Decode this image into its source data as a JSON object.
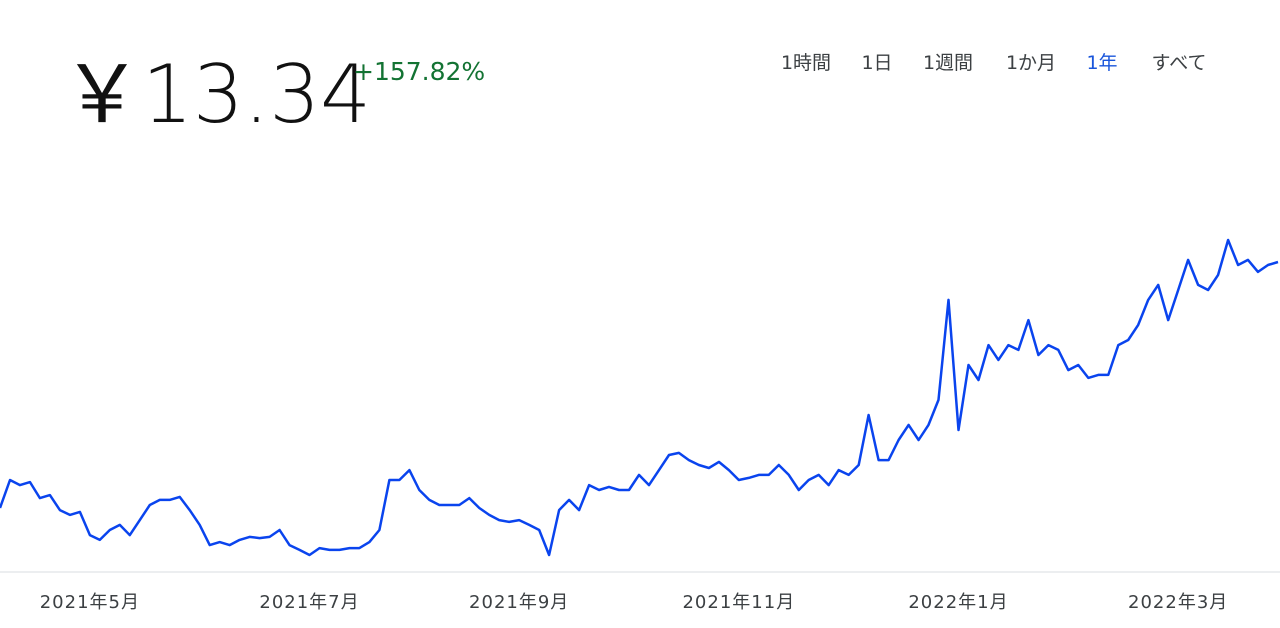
{
  "chart_data": {
    "type": "line",
    "price": "￥13.34",
    "change": "+157.82%",
    "ranges": [
      "1時間",
      "1日",
      "1週間",
      "1か月",
      "1年",
      "すべて"
    ],
    "active_range": 4,
    "color": "#0a44ee",
    "values": [
      5.17,
      6.1,
      5.93,
      6.03,
      5.5,
      5.6,
      5.1,
      4.94,
      5.04,
      4.27,
      4.11,
      4.44,
      4.61,
      4.27,
      4.77,
      5.27,
      5.44,
      5.44,
      5.54,
      5.1,
      4.61,
      3.94,
      4.04,
      3.94,
      4.11,
      4.21,
      4.17,
      4.21,
      4.44,
      3.94,
      3.78,
      3.61,
      3.84,
      3.78,
      3.78,
      3.84,
      3.84,
      4.04,
      4.44,
      6.1,
      6.1,
      6.43,
      5.77,
      5.44,
      5.27,
      5.27,
      5.27,
      5.5,
      5.17,
      4.94,
      4.77,
      4.71,
      4.77,
      4.61,
      4.44,
      3.61,
      5.1,
      5.44,
      5.1,
      5.93,
      5.77,
      5.87,
      5.77,
      5.77,
      6.27,
      5.93,
      6.43,
      6.93,
      7.0,
      6.76,
      6.6,
      6.5,
      6.7,
      6.43,
      6.1,
      6.17,
      6.27,
      6.27,
      6.6,
      6.27,
      5.77,
      6.1,
      6.27,
      5.93,
      6.43,
      6.27,
      6.6,
      8.26,
      6.76,
      6.76,
      7.43,
      7.93,
      7.43,
      7.93,
      8.76,
      12.08,
      7.76,
      9.92,
      9.42,
      10.58,
      10.09,
      10.58,
      10.42,
      11.41,
      10.25,
      10.58,
      10.42,
      9.75,
      9.92,
      9.49,
      9.59,
      9.59,
      10.58,
      10.75,
      11.25,
      12.08,
      12.58,
      11.41,
      12.41,
      13.41,
      12.58,
      12.41,
      12.91,
      14.07,
      13.24,
      13.41,
      13.01,
      13.24,
      13.34
    ],
    "xticks": [
      {
        "value": 9,
        "label": "2021年5月"
      },
      {
        "value": 31,
        "label": "2021年7月"
      },
      {
        "value": 52,
        "label": "2021年9月"
      },
      {
        "value": 74,
        "label": "2021年11月"
      },
      {
        "value": 96,
        "label": "2022年1月"
      },
      {
        "value": 118,
        "label": "2022年3月"
      }
    ]
  }
}
